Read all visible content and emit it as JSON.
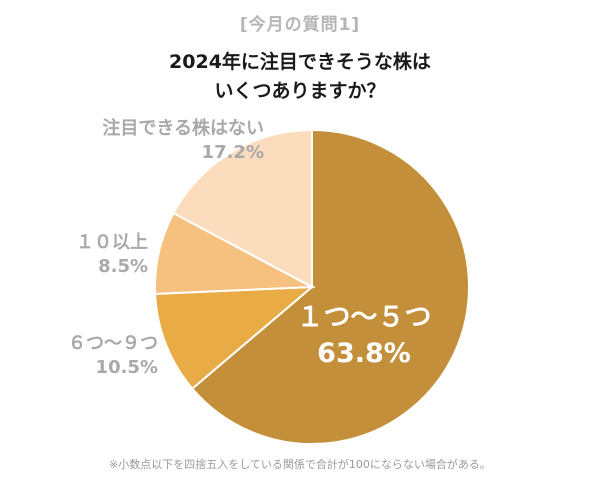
{
  "header": {
    "subtitle": "[今月の質問1]",
    "title_line1": "2024年に注目できそうな株は",
    "title_line2": "いくつありますか？"
  },
  "chart_data": {
    "type": "pie",
    "categories": [
      "１つ～５つ",
      "６つ～９つ",
      "１０以上",
      "注目できる株はない"
    ],
    "values": [
      63.8,
      10.5,
      8.5,
      17.2
    ],
    "value_labels": [
      "63.8%",
      "10.5%",
      "8.5%",
      "17.2%"
    ],
    "colors": [
      "#c48f3a",
      "#e8ab45",
      "#f6c17f",
      "#fbdcbc"
    ],
    "start": "12 o'clock",
    "direction": "clockwise"
  },
  "footnote": "※小数点以下を四捨五入をしている関係で合計が100にならない場合がある。"
}
